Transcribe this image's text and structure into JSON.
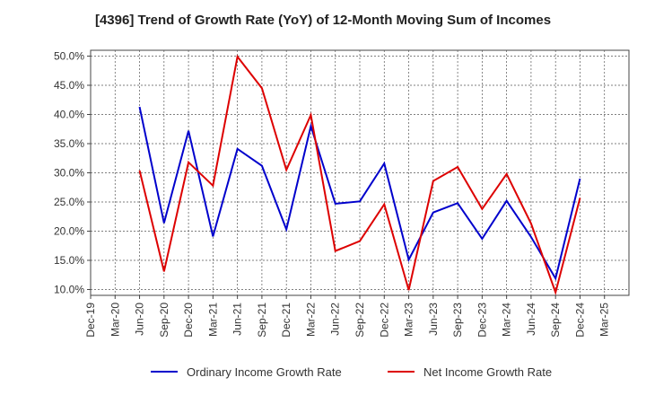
{
  "chart_data": {
    "type": "line",
    "title": "[4396]  Trend of Growth Rate (YoY) of 12-Month Moving Sum of Incomes",
    "x": [
      "Dec-19",
      "Mar-20",
      "Jun-20",
      "Sep-20",
      "Dec-20",
      "Mar-21",
      "Jun-21",
      "Sep-21",
      "Dec-21",
      "Mar-22",
      "Jun-22",
      "Sep-22",
      "Dec-22",
      "Mar-23",
      "Jun-23",
      "Sep-23",
      "Dec-23",
      "Mar-24",
      "Jun-24",
      "Sep-24",
      "Dec-24",
      "Mar-25"
    ],
    "ylim": [
      9.0,
      51.0
    ],
    "yticks": [
      10.0,
      15.0,
      20.0,
      25.0,
      30.0,
      35.0,
      40.0,
      45.0,
      50.0
    ],
    "ytick_labels": [
      "10.0%",
      "15.0%",
      "20.0%",
      "25.0%",
      "30.0%",
      "35.0%",
      "40.0%",
      "45.0%",
      "50.0%"
    ],
    "grid": true,
    "legend_position": "bottom",
    "series": [
      {
        "name": "Ordinary Income Growth Rate",
        "color": "#0000cc",
        "values": [
          null,
          null,
          41.3,
          21.4,
          37.2,
          19.1,
          34.1,
          31.2,
          20.3,
          38.0,
          24.7,
          25.1,
          31.6,
          15.1,
          23.2,
          24.8,
          18.7,
          25.2,
          19.0,
          11.9,
          29.0,
          null
        ]
      },
      {
        "name": "Net Income Growth Rate",
        "color": "#dd0000",
        "values": [
          null,
          null,
          30.4,
          13.1,
          31.8,
          27.8,
          49.9,
          44.5,
          30.5,
          39.9,
          16.6,
          18.3,
          24.6,
          9.9,
          28.6,
          31.0,
          23.8,
          29.8,
          21.3,
          9.5,
          25.7,
          null
        ]
      }
    ]
  }
}
